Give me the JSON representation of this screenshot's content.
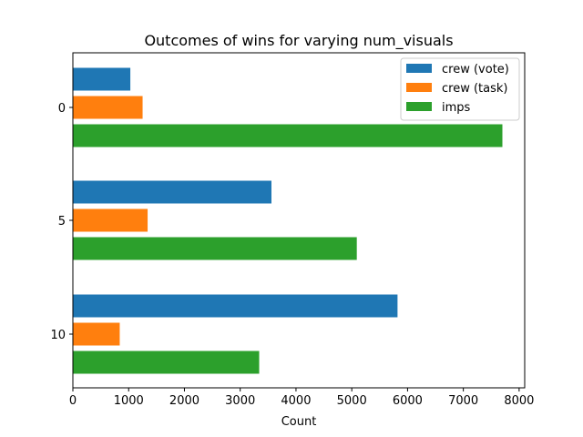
{
  "chart_data": {
    "type": "bar",
    "orientation": "horizontal",
    "title": "Outcomes of wins for varying num_visuals",
    "xlabel": "Count",
    "ylabel": "",
    "xlim": [
      0,
      8100
    ],
    "xticks": [
      0,
      1000,
      2000,
      3000,
      4000,
      5000,
      6000,
      7000,
      8000
    ],
    "categories": [
      "0",
      "5",
      "10"
    ],
    "series": [
      {
        "name": "crew (vote)",
        "color": "#1f77b4",
        "values": [
          1030,
          3560,
          5820
        ]
      },
      {
        "name": "crew (task)",
        "color": "#ff7f0e",
        "values": [
          1250,
          1340,
          840
        ]
      },
      {
        "name": "imps",
        "color": "#2ca02c",
        "values": [
          7700,
          5090,
          3340
        ]
      }
    ],
    "legend_position": "top-right",
    "grid": false
  }
}
